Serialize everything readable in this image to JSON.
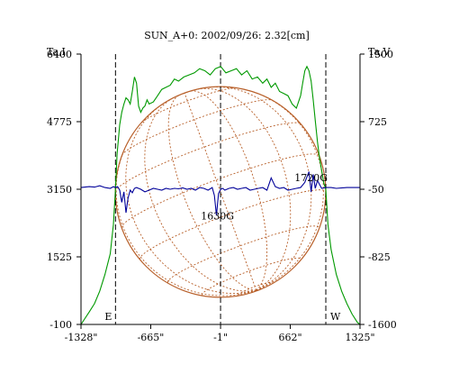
{
  "chart_data": {
    "type": "line",
    "title": "SUN_A+0: 2002/09/26: 2.32[cm]",
    "y_left_label": "Ta,I",
    "y_right_label": "Ta,V",
    "x_ticks": [
      -1328,
      -665,
      -1,
      662,
      1325
    ],
    "x_tick_labels": [
      "-1328\"",
      "-665\"",
      "-1\"",
      "662\"",
      "1325\""
    ],
    "xlim": [
      -1328,
      1325
    ],
    "y_left_ticks": [
      -100,
      1525,
      3150,
      4775,
      6400
    ],
    "y_left_tick_labels": [
      "-100",
      "1525",
      "3150",
      "4775",
      "6400"
    ],
    "ylim_left": [
      -100,
      6400
    ],
    "y_right_ticks": [
      -1600,
      -825,
      -50,
      725,
      1500
    ],
    "y_right_tick_labels": [
      "-1600",
      "-825",
      "-50",
      "725",
      "1500"
    ],
    "ylim_right": [
      -1600,
      1500
    ],
    "vlines": [
      -1000,
      -1,
      1000
    ],
    "markers": {
      "east": "E",
      "west": "W"
    },
    "annotations": [
      {
        "text": "1720G",
        "x": 860,
        "y": 3350
      },
      {
        "text": "1630G",
        "x": -30,
        "y": 2420
      }
    ],
    "grid": "heliographic",
    "colors": {
      "intensity": "#009900",
      "polarization": "#000099",
      "disk": "#b8602a",
      "axes": "#000000"
    },
    "series": [
      {
        "axis": "left",
        "x": [
          -1328,
          -1250,
          -1200,
          -1150,
          -1100,
          -1050,
          -1020,
          -1000,
          -985,
          -960,
          -940,
          -920,
          -900,
          -880,
          -860,
          -840,
          -820,
          -800,
          -780,
          -760,
          -740,
          -720,
          -700,
          -680,
          -640,
          -600,
          -560,
          -520,
          -480,
          -440,
          -400,
          -350,
          -300,
          -250,
          -200,
          -150,
          -100,
          -50,
          0,
          50,
          100,
          150,
          200,
          250,
          300,
          350,
          400,
          440,
          480,
          520,
          560,
          600,
          640,
          680,
          720,
          760,
          780,
          800,
          820,
          840,
          860,
          880,
          900,
          920,
          940,
          960,
          980,
          1000,
          1020,
          1050,
          1100,
          1150,
          1200,
          1250,
          1300,
          1325
        ],
        "values": [
          -100,
          200,
          400,
          700,
          1100,
          1600,
          2300,
          3150,
          4000,
          4700,
          5000,
          5200,
          5350,
          5300,
          5200,
          5500,
          5850,
          5700,
          5150,
          5000,
          5100,
          5150,
          5300,
          5200,
          5250,
          5400,
          5550,
          5600,
          5650,
          5800,
          5750,
          5850,
          5900,
          5950,
          6050,
          6000,
          5900,
          6050,
          6100,
          5950,
          6000,
          6050,
          5900,
          6000,
          5800,
          5850,
          5700,
          5800,
          5600,
          5700,
          5500,
          5450,
          5400,
          5200,
          5100,
          5400,
          5700,
          6000,
          6100,
          6000,
          5750,
          5300,
          4800,
          4300,
          3900,
          3600,
          3300,
          3150,
          2300,
          1700,
          1100,
          700,
          400,
          150,
          -50,
          -100
        ]
      },
      {
        "axis": "right",
        "x": [
          -1328,
          -1250,
          -1200,
          -1150,
          -1100,
          -1050,
          -1020,
          -1000,
          -980,
          -960,
          -940,
          -920,
          -900,
          -880,
          -860,
          -840,
          -820,
          -800,
          -760,
          -720,
          -680,
          -640,
          -600,
          -560,
          -520,
          -480,
          -440,
          -400,
          -360,
          -320,
          -280,
          -240,
          -200,
          -160,
          -120,
          -80,
          -60,
          -40,
          -20,
          0,
          20,
          40,
          80,
          120,
          160,
          200,
          240,
          280,
          320,
          360,
          400,
          440,
          480,
          520,
          560,
          600,
          640,
          680,
          720,
          760,
          800,
          840,
          860,
          880,
          900,
          920,
          960,
          1000,
          1050,
          1100,
          1200,
          1325
        ],
        "values": [
          -30,
          -20,
          -25,
          -10,
          -30,
          -40,
          -20,
          -30,
          -20,
          -60,
          -200,
          -80,
          -320,
          -150,
          -60,
          -90,
          -40,
          -30,
          -50,
          -80,
          -60,
          -40,
          -50,
          -60,
          -40,
          -50,
          -40,
          -45,
          -35,
          -50,
          -40,
          -60,
          -30,
          -40,
          -60,
          -30,
          -120,
          -350,
          -100,
          -50,
          -40,
          -60,
          -40,
          -30,
          -50,
          -40,
          -30,
          -60,
          -50,
          -40,
          -30,
          -60,
          80,
          -20,
          -40,
          -30,
          -60,
          -50,
          -40,
          -30,
          30,
          150,
          -80,
          120,
          -40,
          50,
          -40,
          -30,
          -30,
          -40,
          -30,
          -30
        ]
      }
    ]
  }
}
